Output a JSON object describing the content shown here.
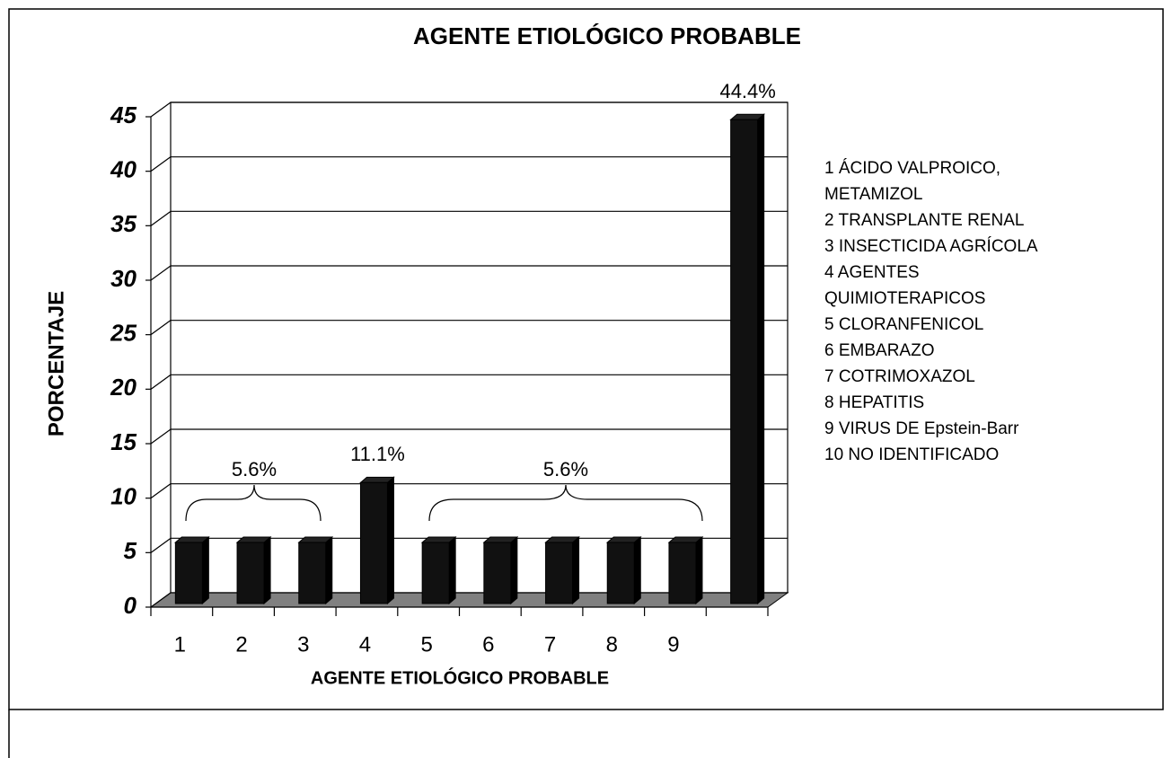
{
  "chart_data": {
    "type": "bar3d",
    "title": "AGENTE ETIOLÓGICO PROBABLE",
    "x_label": "AGENTE ETIOLÓGICO PROBABLE",
    "y_label": "PORCENTAJE",
    "categories": [
      "1",
      "2",
      "3",
      "4",
      "5",
      "6",
      "7",
      "8",
      "9",
      null
    ],
    "values": [
      5.6,
      5.6,
      5.6,
      11.1,
      5.6,
      5.6,
      5.6,
      5.6,
      5.6,
      44.4
    ],
    "value_labels": [
      null,
      null,
      null,
      "11.1%",
      null,
      null,
      null,
      null,
      null,
      "44.4%"
    ],
    "annotations": [
      "5.6%",
      "5.6%"
    ],
    "color": "#111111",
    "floor_color": "#808080",
    "ylim": [
      0,
      45
    ],
    "yticks": [
      0,
      5,
      10,
      15,
      20,
      25,
      30,
      35,
      40,
      45
    ],
    "grid": true,
    "legend": [
      [
        "1  ÁCIDO VALPROICO,",
        "METAMIZOL"
      ],
      [
        "2  TRANSPLANTE RENAL"
      ],
      [
        "3  INSECTICIDA AGRÍCOLA"
      ],
      [
        "4  AGENTES",
        "QUIMIOTERAPICOS"
      ],
      [
        "5  CLORANFENICOL"
      ],
      [
        "6  EMBARAZO"
      ],
      [
        "7  COTRIMOXAZOL"
      ],
      [
        "8  HEPATITIS"
      ],
      [
        "9  VIRUS DE Epstein-Barr"
      ],
      [
        "10  NO  IDENTIFICADO"
      ]
    ]
  }
}
